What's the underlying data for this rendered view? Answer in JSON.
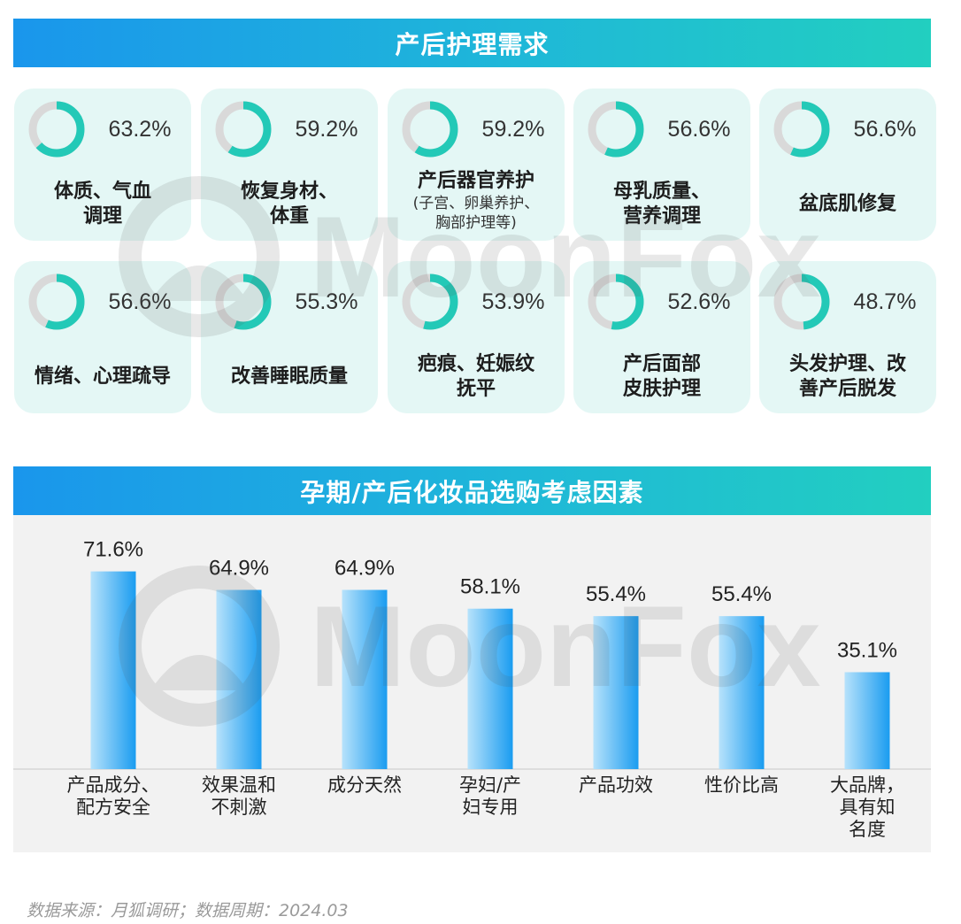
{
  "section1": {
    "title": "产后护理需求",
    "items": [
      {
        "pct_label": "63.2%",
        "value": 63.2,
        "label_lines": [
          "体质、气血",
          "调理"
        ],
        "sub_lines": []
      },
      {
        "pct_label": "59.2%",
        "value": 59.2,
        "label_lines": [
          "恢复身材、",
          "体重"
        ],
        "sub_lines": []
      },
      {
        "pct_label": "59.2%",
        "value": 59.2,
        "label_lines": [
          "产后器官养护"
        ],
        "sub_lines": [
          "(子宫、卵巢养护、",
          "胸部护理等)"
        ]
      },
      {
        "pct_label": "56.6%",
        "value": 56.6,
        "label_lines": [
          "母乳质量、",
          "营养调理"
        ],
        "sub_lines": []
      },
      {
        "pct_label": "56.6%",
        "value": 56.6,
        "label_lines": [
          "盆底肌修复"
        ],
        "sub_lines": []
      },
      {
        "pct_label": "56.6%",
        "value": 56.6,
        "label_lines": [
          "情绪、心理疏导"
        ],
        "sub_lines": []
      },
      {
        "pct_label": "55.3%",
        "value": 55.3,
        "label_lines": [
          "改善睡眠质量"
        ],
        "sub_lines": []
      },
      {
        "pct_label": "53.9%",
        "value": 53.9,
        "label_lines": [
          "疤痕、妊娠纹",
          "抚平"
        ],
        "sub_lines": []
      },
      {
        "pct_label": "52.6%",
        "value": 52.6,
        "label_lines": [
          "产后面部",
          "皮肤护理"
        ],
        "sub_lines": []
      },
      {
        "pct_label": "48.7%",
        "value": 48.7,
        "label_lines": [
          "头发护理、改",
          "善产后脱发"
        ],
        "sub_lines": []
      }
    ]
  },
  "section2": {
    "title": "孕期/产后化妆品选购考虑因素"
  },
  "chart_data": {
    "type": "bar",
    "categories": [
      [
        "产品成分、",
        "配方安全"
      ],
      [
        "效果温和",
        "不刺激"
      ],
      [
        "成分天然"
      ],
      [
        "孕妇/产",
        "妇专用"
      ],
      [
        "产品功效"
      ],
      [
        "性价比高"
      ],
      [
        "大品牌，",
        "具有知",
        "名度"
      ]
    ],
    "values": [
      71.6,
      64.9,
      64.9,
      58.1,
      55.4,
      55.4,
      35.1
    ],
    "value_labels": [
      "71.6%",
      "64.9%",
      "64.9%",
      "58.1%",
      "55.4%",
      "55.4%",
      "35.1%"
    ]
  },
  "watermark": "MoonFox",
  "source": "数据来源：月狐调研；数据周期：2024.03",
  "colors": {
    "banner_start": "#1a96ec",
    "banner_end": "#22cfc0",
    "donut_fill": "#23c9b7",
    "donut_track": "#d9d9d9",
    "card_bg": "#e4f7f5",
    "bar_light": "#b7e2fb",
    "bar_dark": "#1a9cf0"
  }
}
